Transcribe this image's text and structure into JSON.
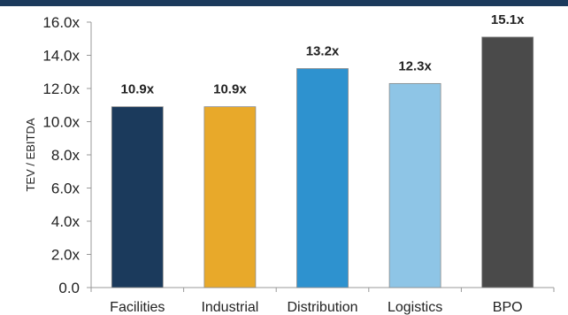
{
  "chart_data": {
    "type": "bar",
    "categories": [
      "Facilities",
      "Industrial",
      "Distribution",
      "Logistics",
      "BPO"
    ],
    "values": [
      10.9,
      10.9,
      13.2,
      12.3,
      15.1
    ],
    "data_labels": [
      "10.9x",
      "10.9x",
      "13.2x",
      "12.3x",
      "15.1x"
    ],
    "colors": [
      "#1b3a5c",
      "#e8a92a",
      "#2e92cf",
      "#8ec5e6",
      "#4a4a4a"
    ],
    "ylabel": "TEV / EBITDA",
    "xlabel": "",
    "ylim": [
      0,
      16
    ],
    "yticks": [
      0,
      2,
      4,
      6,
      8,
      10,
      12,
      14,
      16
    ],
    "ytick_labels": [
      "0.0",
      "2.0x",
      "4.0x",
      "6.0x",
      "8.0x",
      "10.0x",
      "12.0x",
      "14.0x",
      "16.0x"
    ],
    "grid": false,
    "legend": "none"
  },
  "colors": {
    "header_rule": "#1b3a5c",
    "axis": "#999999"
  }
}
